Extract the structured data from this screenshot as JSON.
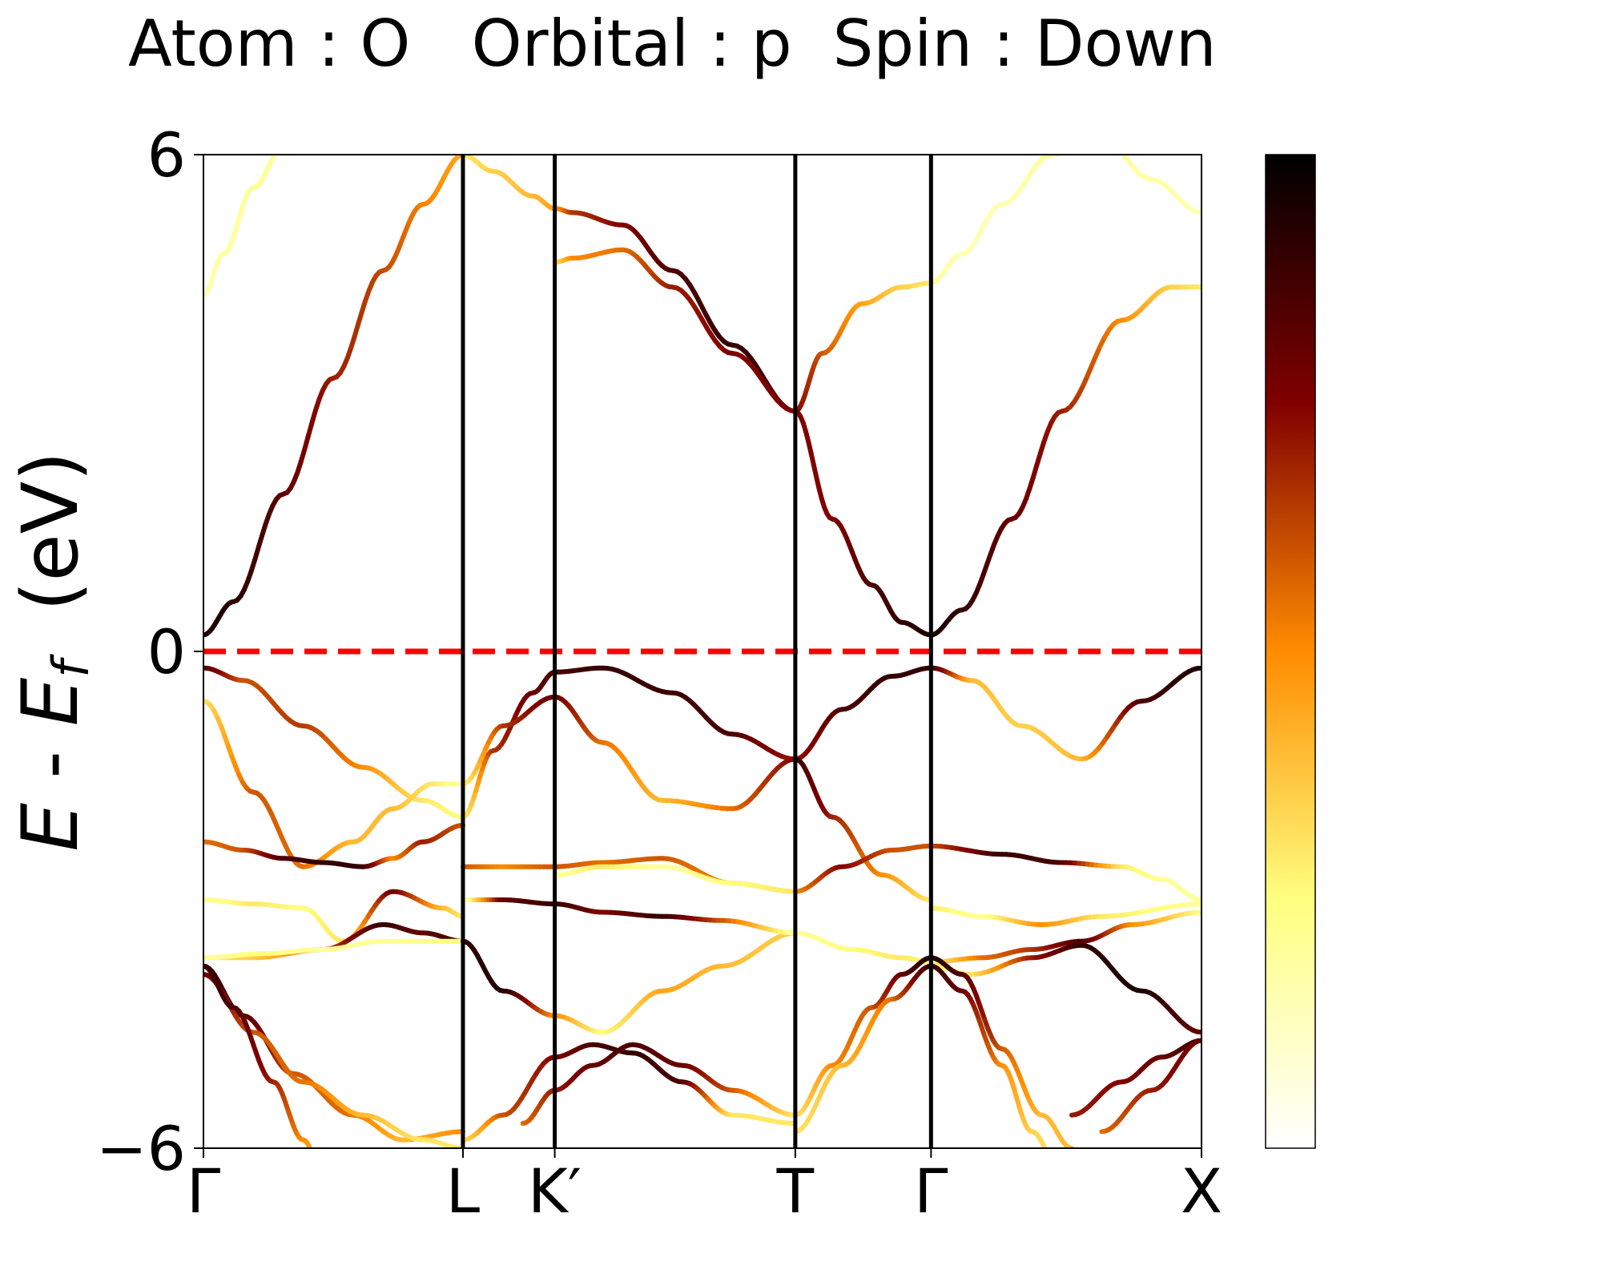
{
  "chart_data": {
    "type": "line",
    "title": "Atom : O   Orbital : p  Spin : Down",
    "ylabel": "E - E_f  (eV)",
    "ylabel_parts": {
      "e": "E",
      "dash": " - ",
      "ef_main": "E",
      "ef_sub": "f",
      "unit": "  (eV)"
    },
    "xlabel": "",
    "ylim": [
      -6,
      6
    ],
    "x_range": [
      0,
      1
    ],
    "y_ticks": [
      {
        "value": 6,
        "label": "6"
      },
      {
        "value": 0,
        "label": "0"
      },
      {
        "value": -6,
        "label": "−6"
      }
    ],
    "k_points": [
      {
        "label": "Γ",
        "x": 0.0
      },
      {
        "label": "L",
        "x": 0.26
      },
      {
        "label": "K′",
        "x": 0.352
      },
      {
        "label": "T",
        "x": 0.593
      },
      {
        "label": "Γ",
        "x": 0.729
      },
      {
        "label": "X",
        "x": 1.0
      }
    ],
    "fermi_level": {
      "value": 0,
      "color": "#ff0000",
      "style": "dashed"
    },
    "colormap": {
      "name": "afmhot_r",
      "range": [
        0,
        1
      ],
      "stops": [
        "#ffffff",
        "#ffff80",
        "#ff8c00",
        "#800000",
        "#000000"
      ],
      "ticks": []
    },
    "grid": false,
    "legend": "none",
    "series": [
      {
        "x": [
          0.0,
          0.03,
          0.08,
          0.13,
          0.18,
          0.22,
          0.26
        ],
        "y": [
          0.2,
          0.6,
          1.9,
          3.3,
          4.6,
          5.4,
          6.0
        ],
        "c": [
          0.95,
          0.92,
          0.82,
          0.7,
          0.62,
          0.52,
          0.45
        ]
      },
      {
        "x": [
          0.0,
          0.02,
          0.05,
          0.08,
          0.1
        ],
        "y": [
          4.3,
          4.8,
          5.6,
          6.1,
          6.6
        ],
        "c": [
          0.15,
          0.18,
          0.2,
          0.2,
          0.2
        ]
      },
      {
        "x": [
          0.26,
          0.29,
          0.33,
          0.352,
          0.37,
          0.42,
          0.47,
          0.53,
          0.593
        ],
        "y": [
          6.0,
          5.8,
          5.5,
          5.35,
          5.3,
          5.15,
          4.6,
          3.7,
          2.9
        ],
        "c": [
          0.3,
          0.35,
          0.4,
          0.45,
          0.65,
          0.75,
          0.85,
          0.9,
          0.85
        ]
      },
      {
        "x": [
          0.352,
          0.37,
          0.42,
          0.47,
          0.53,
          0.593
        ],
        "y": [
          4.7,
          4.75,
          4.85,
          4.4,
          3.6,
          2.9
        ],
        "c": [
          0.3,
          0.5,
          0.55,
          0.7,
          0.75,
          0.75
        ]
      },
      {
        "x": [
          0.593,
          0.62,
          0.66,
          0.7,
          0.729
        ],
        "y": [
          2.9,
          3.6,
          4.2,
          4.4,
          4.45
        ],
        "c": [
          0.75,
          0.6,
          0.45,
          0.35,
          0.3
        ]
      },
      {
        "x": [
          0.593,
          0.63,
          0.67,
          0.7,
          0.729,
          0.76,
          0.81,
          0.86,
          0.92,
          0.97,
          1.0
        ],
        "y": [
          2.9,
          1.6,
          0.8,
          0.35,
          0.2,
          0.5,
          1.6,
          2.9,
          4.0,
          4.4,
          4.4
        ],
        "c": [
          0.75,
          0.75,
          0.85,
          0.9,
          0.95,
          0.9,
          0.8,
          0.7,
          0.5,
          0.35,
          0.3
        ]
      },
      {
        "x": [
          0.729,
          0.76,
          0.8,
          0.85,
          0.9,
          0.95,
          1.0
        ],
        "y": [
          4.45,
          4.8,
          5.4,
          6.0,
          6.2,
          5.7,
          5.3
        ],
        "c": [
          0.2,
          0.15,
          0.15,
          0.2,
          0.2,
          0.18,
          0.15
        ]
      },
      {
        "x": [
          0.0,
          0.04,
          0.1,
          0.16,
          0.22,
          0.26
        ],
        "y": [
          -0.2,
          -0.35,
          -0.9,
          -1.4,
          -1.8,
          -2.0
        ],
        "c": [
          0.85,
          0.6,
          0.65,
          0.5,
          0.3,
          0.25
        ]
      },
      {
        "x": [
          0.26,
          0.29,
          0.33,
          0.352,
          0.4,
          0.47,
          0.53,
          0.593
        ],
        "y": [
          -2.0,
          -1.2,
          -0.5,
          -0.25,
          -0.2,
          -0.5,
          -1.0,
          -1.3
        ],
        "c": [
          0.25,
          0.65,
          0.8,
          0.85,
          0.9,
          0.88,
          0.85,
          0.7
        ]
      },
      {
        "x": [
          0.593,
          0.64,
          0.69,
          0.729,
          0.77,
          0.82,
          0.88,
          0.94,
          1.0
        ],
        "y": [
          -1.3,
          -0.7,
          -0.3,
          -0.2,
          -0.35,
          -0.9,
          -1.3,
          -0.6,
          -0.2
        ],
        "c": [
          0.7,
          0.85,
          0.9,
          0.9,
          0.4,
          0.35,
          0.4,
          0.85,
          0.95
        ]
      },
      {
        "x": [
          0.26,
          0.3,
          0.352,
          0.4,
          0.46,
          0.53,
          0.593
        ],
        "y": [
          -1.6,
          -0.9,
          -0.55,
          -1.1,
          -1.8,
          -1.9,
          -1.3
        ],
        "c": [
          0.25,
          0.65,
          0.8,
          0.55,
          0.4,
          0.55,
          0.75
        ]
      },
      {
        "x": [
          0.593,
          0.63,
          0.68,
          0.729
        ],
        "y": [
          -1.3,
          -2.0,
          -2.7,
          -3.0
        ],
        "c": [
          0.9,
          0.7,
          0.5,
          0.3
        ]
      },
      {
        "x": [
          0.0,
          0.05,
          0.1,
          0.15,
          0.19,
          0.23,
          0.26
        ],
        "y": [
          -0.6,
          -1.7,
          -2.6,
          -2.3,
          -1.9,
          -1.6,
          -1.6
        ],
        "c": [
          0.3,
          0.6,
          0.55,
          0.4,
          0.4,
          0.3,
          0.2
        ]
      },
      {
        "x": [
          0.0,
          0.04,
          0.08,
          0.12,
          0.16,
          0.19,
          0.22,
          0.26
        ],
        "y": [
          -2.3,
          -2.4,
          -2.5,
          -2.55,
          -2.6,
          -2.5,
          -2.3,
          -2.1
        ],
        "c": [
          0.55,
          0.6,
          0.85,
          0.9,
          0.9,
          0.5,
          0.7,
          0.6
        ]
      },
      {
        "x": [
          0.0,
          0.05,
          0.1,
          0.14,
          0.19,
          0.24,
          0.26
        ],
        "y": [
          -3.0,
          -3.05,
          -3.1,
          -3.5,
          -2.9,
          -3.1,
          -3.2
        ],
        "c": [
          0.2,
          0.3,
          0.25,
          0.3,
          0.8,
          0.4,
          0.3
        ]
      },
      {
        "x": [
          0.0,
          0.05,
          0.12,
          0.18,
          0.22,
          0.26
        ],
        "y": [
          -3.7,
          -3.7,
          -3.6,
          -3.3,
          -3.4,
          -3.5
        ],
        "c": [
          0.3,
          0.35,
          0.6,
          0.9,
          0.8,
          0.9
        ]
      },
      {
        "x": [
          0.0,
          0.06,
          0.12,
          0.18,
          0.26
        ],
        "y": [
          -3.7,
          -3.65,
          -3.6,
          -3.5,
          -3.5
        ],
        "c": [
          0.2,
          0.25,
          0.2,
          0.2,
          0.25
        ]
      },
      {
        "x": [
          0.26,
          0.3,
          0.352,
          0.4,
          0.46,
          0.52,
          0.593
        ],
        "y": [
          -3.5,
          -4.1,
          -4.4,
          -4.6,
          -4.1,
          -3.8,
          -3.4
        ],
        "c": [
          0.9,
          0.95,
          0.5,
          0.25,
          0.45,
          0.4,
          0.35
        ]
      },
      {
        "x": [
          0.26,
          0.3,
          0.352,
          0.4,
          0.46,
          0.53,
          0.593
        ],
        "y": [
          -2.6,
          -2.6,
          -2.6,
          -2.55,
          -2.5,
          -2.8,
          -2.9
        ],
        "c": [
          0.6,
          0.5,
          0.6,
          0.55,
          0.6,
          0.5,
          0.45
        ]
      },
      {
        "x": [
          0.26,
          0.3,
          0.352,
          0.4,
          0.46,
          0.52,
          0.593
        ],
        "y": [
          -3.0,
          -3.0,
          -3.05,
          -3.15,
          -3.2,
          -3.25,
          -3.4
        ],
        "c": [
          0.1,
          0.8,
          0.9,
          0.75,
          0.9,
          0.6,
          0.2
        ]
      },
      {
        "x": [
          0.352,
          0.4,
          0.46,
          0.53,
          0.593
        ],
        "y": [
          -2.7,
          -2.6,
          -2.6,
          -2.8,
          -2.9
        ],
        "c": [
          0.2,
          0.3,
          0.2,
          0.25,
          0.3
        ]
      },
      {
        "x": [
          0.593,
          0.64,
          0.69,
          0.729,
          0.8,
          0.86,
          0.92,
          0.96,
          1.0
        ],
        "y": [
          -2.9,
          -2.6,
          -2.4,
          -2.35,
          -2.45,
          -2.55,
          -2.6,
          -2.75,
          -3.0
        ],
        "c": [
          0.5,
          0.75,
          0.6,
          0.6,
          0.9,
          0.85,
          0.3,
          0.2,
          0.2
        ]
      },
      {
        "x": [
          0.593,
          0.65,
          0.7,
          0.729,
          0.78,
          0.83,
          0.88,
          0.93,
          1.0
        ],
        "y": [
          -3.4,
          -3.6,
          -3.7,
          -3.75,
          -3.7,
          -3.6,
          -3.5,
          -3.3,
          -3.15
        ],
        "c": [
          0.2,
          0.25,
          0.3,
          0.25,
          0.55,
          0.65,
          0.85,
          0.5,
          0.25
        ]
      },
      {
        "x": [
          0.729,
          0.78,
          0.84,
          0.9,
          1.0
        ],
        "y": [
          -3.1,
          -3.2,
          -3.3,
          -3.2,
          -3.05
        ],
        "c": [
          0.3,
          0.2,
          0.5,
          0.3,
          0.2
        ]
      },
      {
        "x": [
          0.729,
          0.77,
          0.83,
          0.88,
          0.94,
          1.0
        ],
        "y": [
          -3.8,
          -3.9,
          -3.7,
          -3.55,
          -4.1,
          -4.6
        ],
        "c": [
          0.25,
          0.3,
          0.7,
          0.9,
          0.95,
          0.8
        ]
      },
      {
        "x": [
          0.0,
          0.04,
          0.09,
          0.15,
          0.2,
          0.26
        ],
        "y": [
          -3.8,
          -4.4,
          -5.1,
          -5.6,
          -5.9,
          -5.8
        ],
        "c": [
          0.9,
          0.85,
          0.6,
          0.55,
          0.4,
          0.5
        ]
      },
      {
        "x": [
          0.0,
          0.05,
          0.1,
          0.16,
          0.22,
          0.26
        ],
        "y": [
          -3.9,
          -4.6,
          -5.2,
          -5.6,
          -5.9,
          -6.0
        ],
        "c": [
          0.8,
          0.6,
          0.55,
          0.4,
          0.3,
          0.3
        ]
      },
      {
        "x": [
          0.0,
          0.03,
          0.07,
          0.1,
          0.12
        ],
        "y": [
          -3.8,
          -4.3,
          -5.2,
          -5.9,
          -6.3
        ],
        "c": [
          0.9,
          0.85,
          0.7,
          0.5,
          0.4
        ]
      },
      {
        "x": [
          0.26,
          0.3,
          0.352,
          0.39,
          0.43,
          0.48,
          0.53,
          0.593
        ],
        "y": [
          -5.9,
          -5.6,
          -4.9,
          -4.75,
          -4.85,
          -5.2,
          -5.6,
          -5.7
        ],
        "c": [
          0.3,
          0.6,
          0.75,
          0.85,
          0.9,
          0.85,
          0.3,
          0.3
        ]
      },
      {
        "x": [
          0.32,
          0.352,
          0.39,
          0.43,
          0.48,
          0.53,
          0.593
        ],
        "y": [
          -5.7,
          -5.3,
          -5.0,
          -4.75,
          -5.0,
          -5.3,
          -5.6
        ],
        "c": [
          0.55,
          0.7,
          0.8,
          0.85,
          0.8,
          0.6,
          0.3
        ]
      },
      {
        "x": [
          0.593,
          0.63,
          0.67,
          0.7,
          0.729,
          0.76,
          0.8,
          0.84,
          0.87
        ],
        "y": [
          -5.6,
          -5.0,
          -4.3,
          -3.9,
          -3.7,
          -3.9,
          -4.8,
          -5.6,
          -6.0
        ],
        "c": [
          0.3,
          0.5,
          0.6,
          0.8,
          0.95,
          0.85,
          0.6,
          0.4,
          0.4
        ]
      },
      {
        "x": [
          0.593,
          0.64,
          0.69,
          0.729,
          0.76,
          0.8,
          0.83,
          0.86
        ],
        "y": [
          -5.8,
          -5.0,
          -4.2,
          -3.8,
          -4.1,
          -5.0,
          -5.8,
          -6.3
        ],
        "c": [
          0.3,
          0.4,
          0.55,
          0.9,
          0.8,
          0.5,
          0.35,
          0.3
        ]
      },
      {
        "x": [
          0.87,
          0.92,
          0.96,
          1.0
        ],
        "y": [
          -5.6,
          -5.2,
          -4.9,
          -4.7
        ],
        "c": [
          0.7,
          0.75,
          0.8,
          0.9
        ]
      },
      {
        "x": [
          0.9,
          0.95,
          1.0
        ],
        "y": [
          -5.8,
          -5.3,
          -4.7
        ],
        "c": [
          0.55,
          0.7,
          0.8
        ]
      }
    ]
  }
}
